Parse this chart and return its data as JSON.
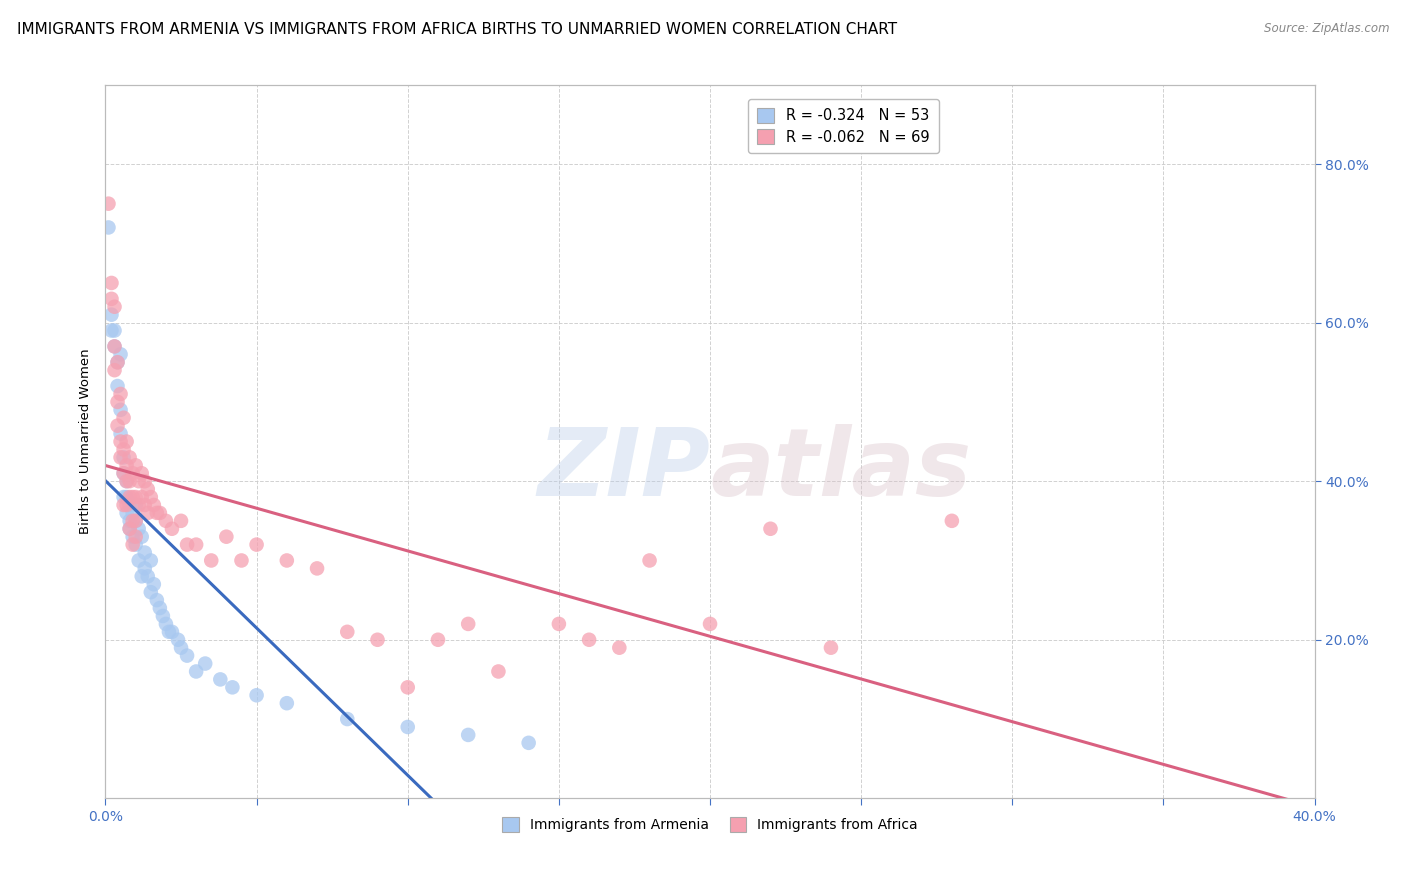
{
  "title": "IMMIGRANTS FROM ARMENIA VS IMMIGRANTS FROM AFRICA BIRTHS TO UNMARRIED WOMEN CORRELATION CHART",
  "source": "Source: ZipAtlas.com",
  "ylabel": "Births to Unmarried Women",
  "legend_armenia": "R = -0.324   N = 53",
  "legend_africa": "R = -0.062   N = 69",
  "watermark_zip": "ZIP",
  "watermark_atlas": "atlas",
  "armenia_color": "#a8c8f0",
  "africa_color": "#f5a0b0",
  "armenia_line_color": "#3a6abf",
  "africa_line_color": "#d96080",
  "tick_color": "#4472c4",
  "background_color": "#ffffff",
  "grid_color": "#cccccc",
  "title_fontsize": 11,
  "xlim": [
    0.0,
    0.4
  ],
  "ylim": [
    0.0,
    0.9
  ],
  "armenia_points": [
    [
      0.001,
      0.72
    ],
    [
      0.002,
      0.61
    ],
    [
      0.002,
      0.59
    ],
    [
      0.003,
      0.57
    ],
    [
      0.003,
      0.59
    ],
    [
      0.004,
      0.55
    ],
    [
      0.004,
      0.52
    ],
    [
      0.005,
      0.56
    ],
    [
      0.005,
      0.49
    ],
    [
      0.005,
      0.46
    ],
    [
      0.006,
      0.43
    ],
    [
      0.006,
      0.41
    ],
    [
      0.006,
      0.38
    ],
    [
      0.007,
      0.4
    ],
    [
      0.007,
      0.36
    ],
    [
      0.007,
      0.38
    ],
    [
      0.008,
      0.37
    ],
    [
      0.008,
      0.35
    ],
    [
      0.008,
      0.34
    ],
    [
      0.009,
      0.36
    ],
    [
      0.009,
      0.33
    ],
    [
      0.01,
      0.35
    ],
    [
      0.01,
      0.32
    ],
    [
      0.01,
      0.37
    ],
    [
      0.011,
      0.34
    ],
    [
      0.011,
      0.3
    ],
    [
      0.012,
      0.33
    ],
    [
      0.012,
      0.28
    ],
    [
      0.013,
      0.31
    ],
    [
      0.013,
      0.29
    ],
    [
      0.014,
      0.28
    ],
    [
      0.015,
      0.3
    ],
    [
      0.015,
      0.26
    ],
    [
      0.016,
      0.27
    ],
    [
      0.017,
      0.25
    ],
    [
      0.018,
      0.24
    ],
    [
      0.019,
      0.23
    ],
    [
      0.02,
      0.22
    ],
    [
      0.021,
      0.21
    ],
    [
      0.022,
      0.21
    ],
    [
      0.024,
      0.2
    ],
    [
      0.025,
      0.19
    ],
    [
      0.027,
      0.18
    ],
    [
      0.03,
      0.16
    ],
    [
      0.033,
      0.17
    ],
    [
      0.038,
      0.15
    ],
    [
      0.042,
      0.14
    ],
    [
      0.05,
      0.13
    ],
    [
      0.06,
      0.12
    ],
    [
      0.08,
      0.1
    ],
    [
      0.1,
      0.09
    ],
    [
      0.12,
      0.08
    ],
    [
      0.14,
      0.07
    ]
  ],
  "africa_points": [
    [
      0.001,
      0.75
    ],
    [
      0.002,
      0.65
    ],
    [
      0.002,
      0.63
    ],
    [
      0.003,
      0.62
    ],
    [
      0.003,
      0.57
    ],
    [
      0.003,
      0.54
    ],
    [
      0.004,
      0.55
    ],
    [
      0.004,
      0.5
    ],
    [
      0.004,
      0.47
    ],
    [
      0.005,
      0.51
    ],
    [
      0.005,
      0.45
    ],
    [
      0.005,
      0.43
    ],
    [
      0.006,
      0.48
    ],
    [
      0.006,
      0.44
    ],
    [
      0.006,
      0.41
    ],
    [
      0.006,
      0.37
    ],
    [
      0.007,
      0.45
    ],
    [
      0.007,
      0.42
    ],
    [
      0.007,
      0.4
    ],
    [
      0.007,
      0.37
    ],
    [
      0.008,
      0.43
    ],
    [
      0.008,
      0.4
    ],
    [
      0.008,
      0.38
    ],
    [
      0.008,
      0.34
    ],
    [
      0.009,
      0.41
    ],
    [
      0.009,
      0.38
    ],
    [
      0.009,
      0.35
    ],
    [
      0.009,
      0.32
    ],
    [
      0.01,
      0.42
    ],
    [
      0.01,
      0.38
    ],
    [
      0.01,
      0.35
    ],
    [
      0.01,
      0.33
    ],
    [
      0.011,
      0.4
    ],
    [
      0.011,
      0.37
    ],
    [
      0.012,
      0.41
    ],
    [
      0.012,
      0.38
    ],
    [
      0.013,
      0.4
    ],
    [
      0.013,
      0.37
    ],
    [
      0.014,
      0.39
    ],
    [
      0.014,
      0.36
    ],
    [
      0.015,
      0.38
    ],
    [
      0.016,
      0.37
    ],
    [
      0.017,
      0.36
    ],
    [
      0.018,
      0.36
    ],
    [
      0.02,
      0.35
    ],
    [
      0.022,
      0.34
    ],
    [
      0.025,
      0.35
    ],
    [
      0.027,
      0.32
    ],
    [
      0.03,
      0.32
    ],
    [
      0.035,
      0.3
    ],
    [
      0.04,
      0.33
    ],
    [
      0.045,
      0.3
    ],
    [
      0.05,
      0.32
    ],
    [
      0.06,
      0.3
    ],
    [
      0.07,
      0.29
    ],
    [
      0.08,
      0.21
    ],
    [
      0.09,
      0.2
    ],
    [
      0.1,
      0.14
    ],
    [
      0.11,
      0.2
    ],
    [
      0.12,
      0.22
    ],
    [
      0.13,
      0.16
    ],
    [
      0.15,
      0.22
    ],
    [
      0.16,
      0.2
    ],
    [
      0.17,
      0.19
    ],
    [
      0.18,
      0.3
    ],
    [
      0.2,
      0.22
    ],
    [
      0.22,
      0.34
    ],
    [
      0.24,
      0.19
    ],
    [
      0.28,
      0.35
    ]
  ]
}
